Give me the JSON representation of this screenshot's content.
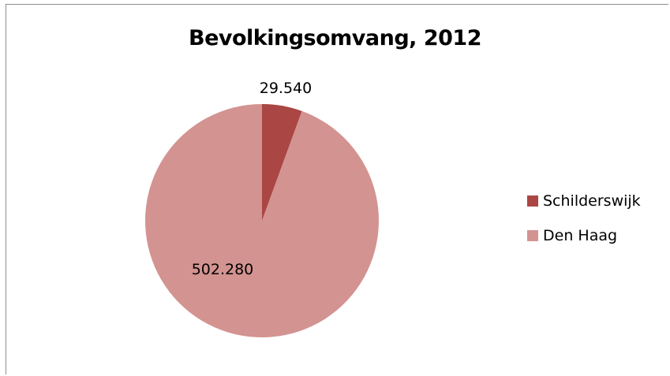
{
  "chart_data": {
    "type": "pie",
    "title": "Bevolkingsomvang, 2012",
    "categories": [
      "Schilderswijk",
      "Den Haag"
    ],
    "values": [
      29540,
      502280
    ],
    "value_labels": [
      "29.540",
      "502.280"
    ],
    "colors": [
      "#aa4643",
      "#d39391"
    ],
    "legend_position": "right"
  }
}
